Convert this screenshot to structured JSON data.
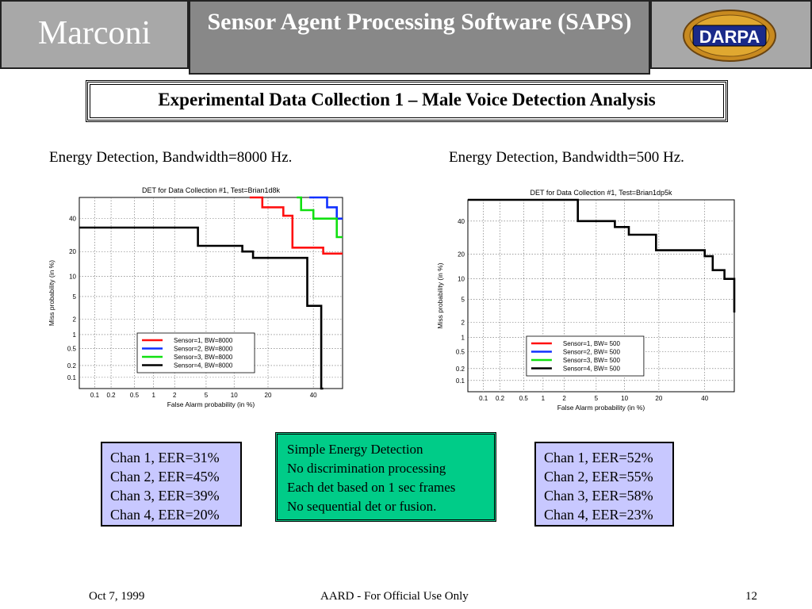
{
  "header": {
    "logo_text": "Marconi",
    "title": "Sensor Agent Processing Software (SAPS)",
    "seal_text": "DARPA"
  },
  "subtitle": "Experimental Data Collection 1 – Male Voice Detection Analysis",
  "charts": {
    "left_caption": "Energy Detection, Bandwidth=8000 Hz.",
    "right_caption": "Energy Detection, Bandwidth=500 Hz."
  },
  "colors": {
    "sensor1": "#ff1010",
    "sensor2": "#1030ff",
    "sensor3": "#10e010",
    "sensor4": "#000000",
    "eer_box": "#c8c8ff",
    "notes_box": "#00cc88"
  },
  "chart_data": [
    {
      "type": "line",
      "title": "DET for Data Collection #1, Test=Brian1d8k",
      "xlabel": "False Alarm probability (in %)",
      "ylabel": "Miss probability (in %)",
      "x_ticks": [
        0.1,
        0.2,
        0.5,
        1,
        2,
        5,
        10,
        20,
        40
      ],
      "y_ticks": [
        0.1,
        0.2,
        0.5,
        1,
        2,
        5,
        10,
        20,
        40
      ],
      "xlim": [
        0.05,
        55
      ],
      "ylim": [
        0.05,
        55
      ],
      "grid": true,
      "legend": "bottom-center",
      "series": [
        {
          "name": "Sensor=1, BW=8000",
          "color": "#ff1010",
          "x": [
            14,
            18,
            18,
            26,
            26,
            30,
            30,
            45,
            45,
            55
          ],
          "y": [
            55,
            55,
            48,
            48,
            42,
            42,
            22,
            22,
            19,
            19
          ]
        },
        {
          "name": "Sensor=2, BW=8000",
          "color": "#1030ff",
          "x": [
            38,
            47,
            47,
            52,
            52,
            55
          ],
          "y": [
            55,
            55,
            48,
            48,
            40,
            40
          ]
        },
        {
          "name": "Sensor=3, BW=8000",
          "color": "#10e010",
          "x": [
            32,
            34,
            34,
            40,
            40,
            52,
            52,
            55
          ],
          "y": [
            55,
            55,
            46,
            46,
            40,
            40,
            28,
            28
          ]
        },
        {
          "name": "Sensor=4, BW=8000",
          "color": "#000000",
          "x": [
            0.05,
            4,
            4,
            12,
            12,
            15,
            15,
            37,
            37,
            44,
            44,
            45
          ],
          "y": [
            34,
            34,
            23,
            23,
            20,
            20,
            17,
            17,
            3.5,
            3.5,
            0.05,
            0.05
          ]
        }
      ]
    },
    {
      "type": "line",
      "title": "DET for Data Collection #1, Test=Brian1dp5k",
      "xlabel": "False Alarm probability (in %)",
      "ylabel": "Miss probability (in %)",
      "x_ticks": [
        0.1,
        0.2,
        0.5,
        1,
        2,
        5,
        10,
        20,
        40
      ],
      "y_ticks": [
        0.1,
        0.2,
        0.5,
        1,
        2,
        5,
        10,
        20,
        40
      ],
      "xlim": [
        0.05,
        55
      ],
      "ylim": [
        0.05,
        55
      ],
      "grid": true,
      "legend": "bottom-center",
      "series": [
        {
          "name": "Sensor=1, BW= 500",
          "color": "#ff1010",
          "x": [],
          "y": []
        },
        {
          "name": "Sensor=2, BW= 500",
          "color": "#1030ff",
          "x": [],
          "y": []
        },
        {
          "name": "Sensor=3, BW= 500",
          "color": "#10e010",
          "x": [],
          "y": []
        },
        {
          "name": "Sensor=4, BW= 500",
          "color": "#000000",
          "x": [
            0.05,
            3,
            3,
            8,
            8,
            11,
            11,
            19,
            19,
            40,
            40,
            44,
            44,
            50,
            50,
            55,
            55
          ],
          "y": [
            55,
            55,
            40,
            40,
            36,
            36,
            31,
            31,
            22,
            22,
            19,
            19,
            13,
            13,
            10,
            10,
            3
          ]
        }
      ]
    }
  ],
  "eer_left": [
    "Chan 1, EER=31%",
    "Chan 2, EER=45%",
    "Chan 3, EER=39%",
    "Chan 4, EER=20%"
  ],
  "notes": [
    "Simple Energy Detection",
    "No discrimination processing",
    "Each det based on 1 sec frames",
    "No sequential det or fusion."
  ],
  "eer_right": [
    "Chan 1, EER=52%",
    "Chan 2, EER=55%",
    "Chan 3, EER=58%",
    "Chan 4, EER=23%"
  ],
  "footer": {
    "date": "Oct 7, 1999",
    "center": "AARD - For Official Use Only",
    "page": "12"
  }
}
